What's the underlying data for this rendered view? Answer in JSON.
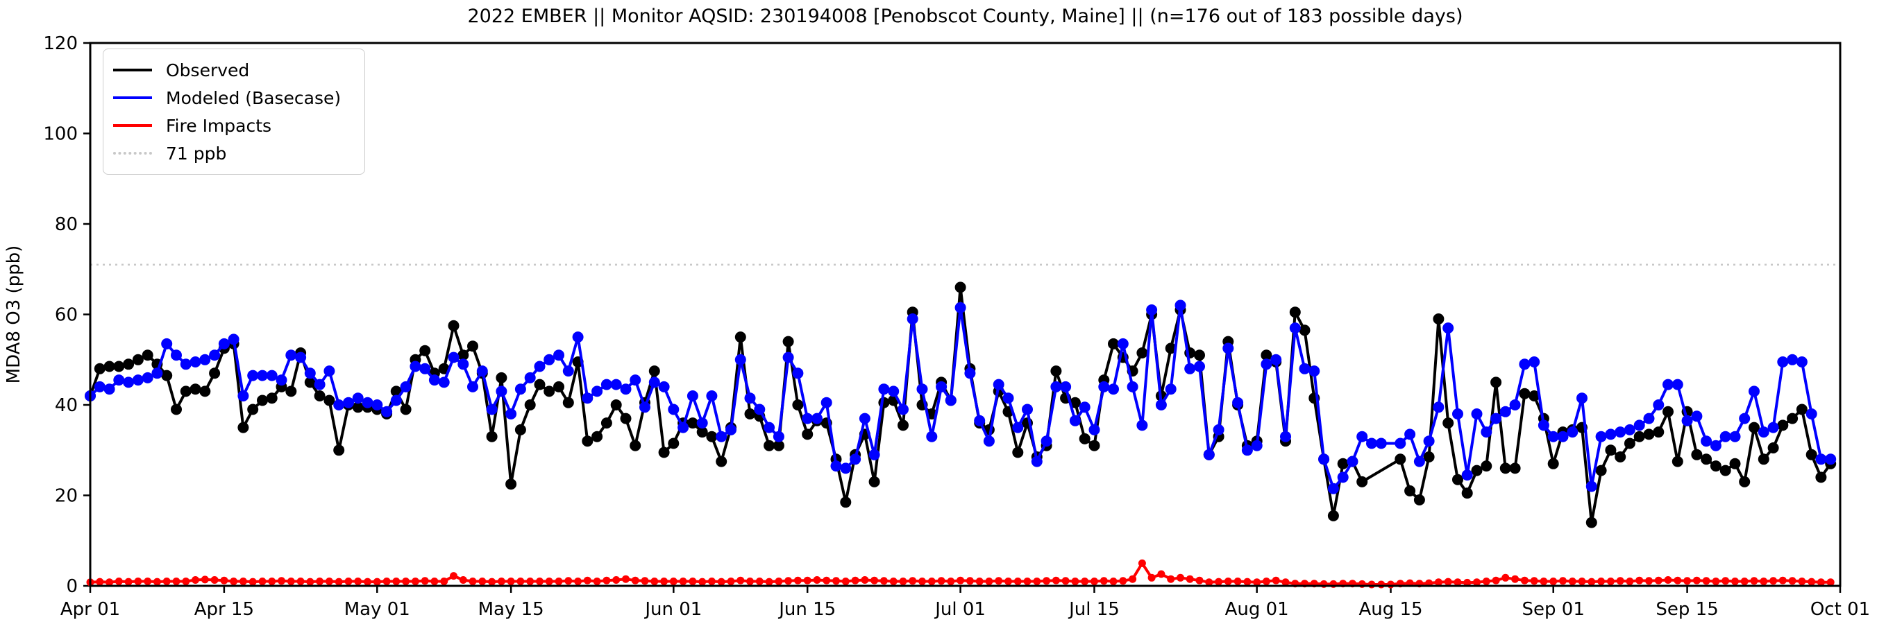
{
  "title": "2022 EMBER || Monitor AQSID: 230194008 [Penobscot County, Maine] || (n=176 out of 183 possible days)",
  "legend": {
    "items": [
      {
        "label": "Observed",
        "color": "#000000",
        "style": "solid"
      },
      {
        "label": "Modeled (Basecase)",
        "color": "#0000ff",
        "style": "solid"
      },
      {
        "label": "Fire Impacts",
        "color": "#ff0000",
        "style": "solid"
      },
      {
        "label": "71 ppb",
        "color": "#c8c8c8",
        "style": "dotted"
      }
    ]
  },
  "chart_data": {
    "type": "line",
    "title": "2022 EMBER || Monitor AQSID: 230194008 [Penobscot County, Maine] || (n=176 out of 183 possible days)",
    "xlabel": "",
    "ylabel": "MDA8 O3 (ppb)",
    "ylim": [
      0,
      120
    ],
    "yticks": [
      0,
      20,
      40,
      60,
      80,
      100,
      120
    ],
    "x_start_date": "2022-04-01",
    "x_days_total": 183,
    "xticks": [
      {
        "label": "Apr 01",
        "day": 0
      },
      {
        "label": "Apr 15",
        "day": 14
      },
      {
        "label": "May 01",
        "day": 30
      },
      {
        "label": "May 15",
        "day": 44
      },
      {
        "label": "Jun 01",
        "day": 61
      },
      {
        "label": "Jun 15",
        "day": 75
      },
      {
        "label": "Jul 01",
        "day": 91
      },
      {
        "label": "Jul 15",
        "day": 105
      },
      {
        "label": "Aug 01",
        "day": 122
      },
      {
        "label": "Aug 15",
        "day": 136
      },
      {
        "label": "Sep 01",
        "day": 153
      },
      {
        "label": "Sep 15",
        "day": 167
      },
      {
        "label": "Oct 01",
        "day": 183
      }
    ],
    "threshold": {
      "value": 71,
      "label": "71 ppb",
      "color": "#c8c8c8"
    },
    "grid": false,
    "legend_position": "upper left",
    "series": [
      {
        "name": "Observed",
        "color": "#000000",
        "marker": "circle",
        "values": [
          42,
          48,
          48.5,
          48.5,
          49,
          50,
          51,
          49,
          46.5,
          39,
          43,
          43.5,
          43,
          47,
          52.5,
          53.5,
          35,
          39,
          41,
          41.5,
          44,
          43,
          51.5,
          45,
          42,
          41,
          30,
          40,
          39.5,
          39.5,
          39,
          38,
          43,
          39,
          50,
          52,
          47,
          48,
          57.5,
          51,
          53,
          47,
          33,
          46,
          22.5,
          34.5,
          40,
          44.5,
          43,
          44,
          40.5,
          49.5,
          32,
          33,
          36,
          40,
          37,
          31,
          40.5,
          47.5,
          29.5,
          31.5,
          36,
          36,
          34,
          33,
          27.5,
          35,
          55,
          38,
          37.5,
          31,
          31,
          54,
          40,
          33.5,
          36.5,
          36,
          28,
          18.5,
          29,
          33.5,
          23,
          40.5,
          41,
          35.5,
          60.5,
          40,
          38,
          45,
          41,
          66,
          48,
          36,
          34.5,
          43,
          38.5,
          29.5,
          36,
          28.5,
          31,
          47.5,
          41.5,
          40.5,
          32.5,
          31,
          45.5,
          53.5,
          50.5,
          47.5,
          51.5,
          60,
          42,
          52.5,
          61,
          51.5,
          51,
          29,
          33,
          54,
          40,
          31,
          32,
          51,
          49.5,
          32,
          60.5,
          56.5,
          41.5,
          28,
          15.5,
          27,
          27.5,
          23,
          null,
          null,
          null,
          28,
          21,
          19,
          28.5,
          59,
          36,
          23.5,
          20.5,
          25.5,
          26.5,
          45,
          26,
          26,
          42.5,
          42,
          37,
          27,
          34,
          34.5,
          35,
          14,
          25.5,
          30,
          28.5,
          31.5,
          33,
          33.5,
          34,
          38.5,
          27.5,
          38.5,
          29,
          28,
          26.5,
          25.5,
          27,
          23,
          35,
          28,
          30.5,
          35.5,
          37,
          39,
          29,
          24,
          27
        ]
      },
      {
        "name": "Modeled (Basecase)",
        "color": "#0000ff",
        "marker": "circle",
        "values": [
          42,
          44,
          43.5,
          45.5,
          45,
          45.5,
          46,
          47,
          53.5,
          51,
          49,
          49.5,
          50,
          51,
          53.5,
          54.5,
          42,
          46.5,
          46.5,
          46.5,
          45.5,
          51,
          50.5,
          47,
          44.5,
          47.5,
          40,
          40.5,
          41.5,
          40.5,
          40,
          38.5,
          41,
          44,
          48.5,
          48,
          45.5,
          45,
          50.5,
          49,
          44,
          47.5,
          39,
          43,
          38,
          43.5,
          46,
          48.5,
          50,
          51,
          47.5,
          55,
          41.5,
          43,
          44.5,
          44.5,
          43.5,
          45.5,
          39.5,
          45,
          44,
          39,
          35,
          42,
          36,
          42,
          33,
          34.5,
          50,
          41.5,
          39,
          35,
          33,
          50.5,
          47,
          37,
          37,
          40.5,
          26.5,
          26,
          28,
          37,
          29,
          43.5,
          43,
          39,
          59,
          43.5,
          33,
          44,
          41,
          61.5,
          47,
          36.5,
          32,
          44.5,
          41.5,
          35,
          39,
          27.5,
          32,
          44,
          44,
          36.5,
          39.5,
          34.5,
          44,
          43.5,
          53.5,
          44,
          35.5,
          61,
          40,
          43.5,
          62,
          48,
          48.5,
          29,
          34.5,
          52.5,
          40.5,
          30,
          31,
          49,
          50,
          33,
          57,
          48,
          47.5,
          28,
          21.5,
          24,
          27.5,
          33,
          31.5,
          31.5,
          null,
          31.5,
          33.5,
          27.5,
          32,
          39.5,
          57,
          38,
          24.5,
          38,
          34,
          37,
          38.5,
          40,
          49,
          49.5,
          35.5,
          33,
          33,
          34,
          41.5,
          22,
          33,
          33.5,
          34,
          34.5,
          35.5,
          37,
          40,
          44.5,
          44.5,
          36.5,
          37.5,
          32,
          31,
          33,
          33,
          37,
          43,
          34,
          35,
          49.5,
          50,
          49.5,
          38,
          28,
          28
        ]
      },
      {
        "name": "Fire Impacts",
        "color": "#ff0000",
        "marker": "circle",
        "values": [
          0.8,
          0.9,
          0.8,
          1,
          0.9,
          1,
          1,
          0.9,
          1,
          1,
          1,
          1.3,
          1.4,
          1.3,
          1.2,
          1,
          1,
          0.9,
          1,
          1,
          1.1,
          1,
          1,
          0.9,
          1,
          1,
          0.9,
          1,
          1,
          0.9,
          0.9,
          1,
          1,
          1,
          1,
          1.1,
          1,
          1,
          2.2,
          1.3,
          1,
          1,
          0.9,
          1,
          1,
          1,
          1,
          1,
          1,
          1,
          1.1,
          1,
          1.2,
          1,
          1.2,
          1.3,
          1.5,
          1.2,
          1.1,
          1,
          1,
          1,
          1,
          1,
          0.9,
          1,
          0.9,
          1,
          1.2,
          1,
          1,
          0.9,
          1,
          1.1,
          1.2,
          1.2,
          1.3,
          1.2,
          1.1,
          1,
          1.2,
          1.3,
          1.2,
          1.1,
          1,
          1,
          1.1,
          1,
          1,
          1.1,
          1,
          1.2,
          1.1,
          1,
          1,
          1.1,
          1,
          1,
          1,
          1,
          1.1,
          1.2,
          1.1,
          1,
          1,
          1,
          1.1,
          1,
          1.1,
          1.5,
          5,
          1.8,
          2.6,
          1.5,
          1.8,
          1.5,
          1.2,
          0.8,
          0.9,
          1,
          1,
          0.9,
          0.8,
          1,
          1.2,
          0.8,
          0.5,
          0.5,
          0.5,
          0.4,
          0.4,
          0.5,
          0.5,
          0.4,
          0.3,
          0.3,
          0.3,
          0.5,
          0.6,
          0.5,
          0.6,
          0.8,
          0.9,
          0.8,
          0.7,
          0.8,
          1,
          1.2,
          1.8,
          1.5,
          1.2,
          1.1,
          1,
          1,
          1.1,
          1,
          1,
          0.9,
          1,
          1,
          1.1,
          1,
          1.2,
          1.1,
          1.2,
          1.3,
          1.2,
          1.1,
          1.2,
          1.1,
          1,
          1.1,
          1,
          1,
          1.1,
          1,
          1.1,
          1.2,
          1.1,
          1,
          0.9,
          0.8,
          0.8
        ]
      }
    ]
  }
}
